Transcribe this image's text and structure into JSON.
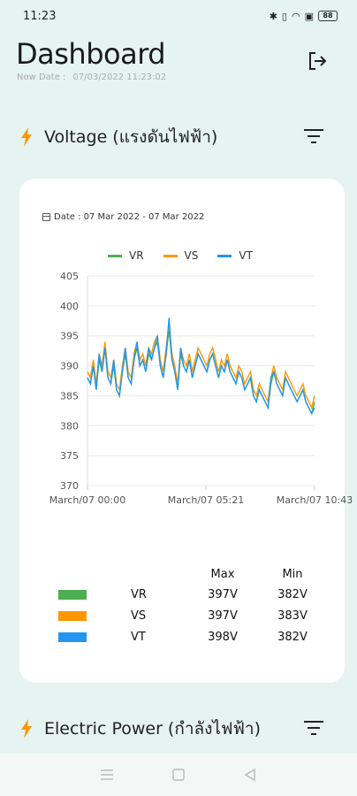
{
  "status": {
    "time": "11:23",
    "battery": "88"
  },
  "header": {
    "title": "Dashboard",
    "now_label": "Now Date :",
    "now_value": "07/03/2022 11:23:02"
  },
  "sections": {
    "voltage": {
      "title": "Voltage (แรงดันไฟฟ้า)"
    },
    "power": {
      "title": "Electric Power (กำลังไฟฟ้า)"
    }
  },
  "card": {
    "date_range": "Date : 07 Mar 2022 - 07 Mar 2022"
  },
  "colors": {
    "VR": "#4caf50",
    "VS": "#ff9800",
    "VT": "#2196f3",
    "accent": "#ff9800"
  },
  "chart_data": {
    "type": "line",
    "ylim": [
      370,
      405
    ],
    "yticks": [
      "405",
      "400",
      "395",
      "390",
      "385",
      "380",
      "375",
      "370"
    ],
    "xticks": [
      "March/07 00:00",
      "March/07 05:21",
      "March/07 10:43"
    ],
    "legend": [
      "VR",
      "VS",
      "VT"
    ],
    "series": [
      {
        "name": "VR",
        "values": [
          388,
          387,
          390,
          386,
          391,
          389,
          393,
          388,
          387,
          390,
          386,
          385,
          389,
          392,
          388,
          387,
          391,
          393,
          390,
          391,
          389,
          392,
          391,
          393,
          394,
          390,
          388,
          392,
          396,
          391,
          389,
          386,
          392,
          390,
          389,
          391,
          388,
          390,
          392,
          391,
          390,
          389,
          391,
          392,
          390,
          388,
          390,
          389,
          391,
          389,
          388,
          387,
          389,
          388,
          386,
          387,
          388,
          385,
          384,
          386,
          385,
          384,
          383,
          387,
          389,
          387,
          386,
          385,
          388,
          387,
          386,
          385,
          384,
          385,
          386,
          384,
          383,
          382,
          384
        ]
      },
      {
        "name": "VS",
        "values": [
          389,
          388,
          391,
          387,
          392,
          390,
          394,
          389,
          388,
          391,
          387,
          386,
          390,
          393,
          389,
          388,
          392,
          394,
          391,
          392,
          390,
          393,
          392,
          394,
          395,
          391,
          389,
          393,
          397,
          392,
          390,
          387,
          393,
          391,
          390,
          392,
          389,
          391,
          393,
          392,
          391,
          390,
          392,
          393,
          391,
          389,
          391,
          390,
          392,
          390,
          389,
          388,
          390,
          389,
          387,
          388,
          389,
          386,
          385,
          387,
          386,
          385,
          384,
          388,
          390,
          388,
          387,
          386,
          389,
          388,
          387,
          386,
          385,
          386,
          387,
          385,
          384,
          383,
          385
        ]
      },
      {
        "name": "VT",
        "values": [
          388,
          387,
          390,
          386,
          392,
          389,
          393,
          388,
          387,
          391,
          386,
          385,
          389,
          393,
          388,
          387,
          391,
          394,
          390,
          391,
          389,
          393,
          391,
          393,
          395,
          390,
          388,
          392,
          398,
          391,
          389,
          386,
          393,
          390,
          389,
          391,
          388,
          390,
          392,
          391,
          390,
          389,
          391,
          392,
          390,
          388,
          390,
          389,
          391,
          389,
          388,
          387,
          389,
          388,
          386,
          387,
          388,
          385,
          384,
          386,
          385,
          384,
          383,
          388,
          389,
          387,
          386,
          385,
          388,
          387,
          386,
          385,
          384,
          385,
          386,
          384,
          383,
          382,
          383
        ]
      }
    ]
  },
  "stats": {
    "max_label": "Max",
    "min_label": "Min",
    "rows": [
      {
        "name": "VR",
        "max": "397V",
        "min": "382V"
      },
      {
        "name": "VS",
        "max": "397V",
        "min": "383V"
      },
      {
        "name": "VT",
        "max": "398V",
        "min": "382V"
      }
    ]
  }
}
